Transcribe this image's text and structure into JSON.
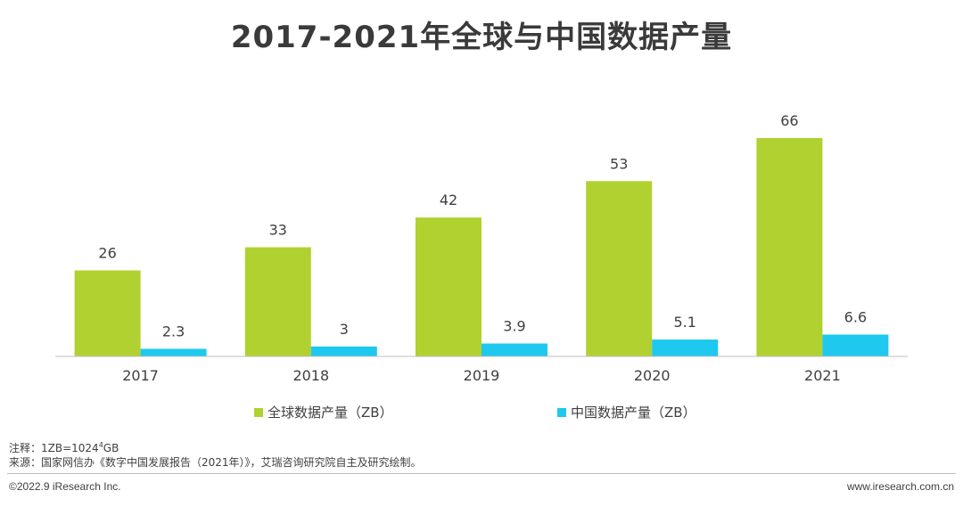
{
  "title": "2017-2021年全球与中国数据产量",
  "chart_data": {
    "type": "bar",
    "categories": [
      "2017",
      "2018",
      "2019",
      "2020",
      "2021"
    ],
    "series": [
      {
        "name": "全球数据产量（ZB）",
        "values": [
          26,
          33,
          42,
          53,
          66
        ],
        "labels": [
          "26",
          "33",
          "42",
          "53",
          "66"
        ],
        "color": "#b0d130"
      },
      {
        "name": "中国数据产量（ZB）",
        "values": [
          2.3,
          3,
          3.9,
          5.1,
          6.6
        ],
        "labels": [
          "2.3",
          "3",
          "3.9",
          "5.1",
          "6.6"
        ],
        "color": "#1ec8ef"
      }
    ],
    "ylim": [
      0,
      70
    ],
    "grid": false,
    "legend_position": "bottom"
  },
  "notes": {
    "note_prefix": "注释：1ZB=1024",
    "note_sup": "4",
    "note_suffix": "GB",
    "source": "来源：国家网信办《数字中国发展报告（2021年）》，艾瑞咨询研究院自主及研究绘制。"
  },
  "footer": {
    "left": "©2022.9 iResearch Inc.",
    "right": "www.iresearch.com.cn"
  }
}
